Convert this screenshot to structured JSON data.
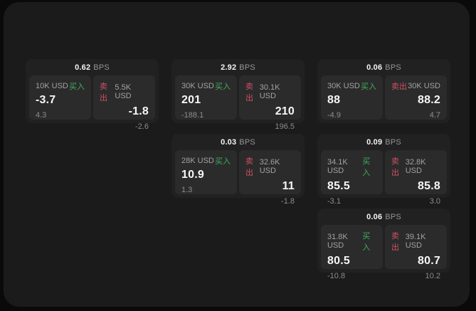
{
  "labels": {
    "bps": "BPS",
    "buy": "买入",
    "sell": "卖出"
  },
  "colors": {
    "outer_bg": "#0a0a0a",
    "surface_bg": "#1b1b1c",
    "card_bg": "#212121",
    "panel_bg": "#2b2b2b",
    "buy_green": "#3fae5e",
    "sell_red": "#d14f63",
    "text_primary": "#f4f4f4",
    "text_muted": "#959595"
  },
  "cards": [
    {
      "col": "1",
      "row": "1",
      "bps": "0.62",
      "buy": {
        "amount": "10K USD",
        "price": "-3.7",
        "delta": "4.3"
      },
      "sell": {
        "amount": "5.5K USD",
        "price": "-1.8",
        "delta": "-2.6"
      }
    },
    {
      "col": "2",
      "row": "1",
      "bps": "2.92",
      "buy": {
        "amount": "30K USD",
        "price": "201",
        "delta": "-188.1"
      },
      "sell": {
        "amount": "30.1K USD",
        "price": "210",
        "delta": "196.5"
      }
    },
    {
      "col": "3",
      "row": "1",
      "bps": "0.06",
      "buy": {
        "amount": "30K USD",
        "price": "88",
        "delta": "-4.9"
      },
      "sell": {
        "amount": "30K USD",
        "price": "88.2",
        "delta": "4.7"
      }
    },
    {
      "col": "2",
      "row": "2",
      "bps": "0.03",
      "buy": {
        "amount": "28K USD",
        "price": "10.9",
        "delta": "1.3"
      },
      "sell": {
        "amount": "32.6K USD",
        "price": "11",
        "delta": "-1.8"
      }
    },
    {
      "col": "3",
      "row": "2",
      "bps": "0.09",
      "buy": {
        "amount": "34.1K USD",
        "price": "85.5",
        "delta": "-3.1"
      },
      "sell": {
        "amount": "32.8K USD",
        "price": "85.8",
        "delta": "3.0"
      }
    },
    {
      "col": "3",
      "row": "3",
      "bps": "0.06",
      "buy": {
        "amount": "31.8K USD",
        "price": "80.5",
        "delta": "-10.8"
      },
      "sell": {
        "amount": "39.1K USD",
        "price": "80.7",
        "delta": "10.2"
      }
    }
  ]
}
